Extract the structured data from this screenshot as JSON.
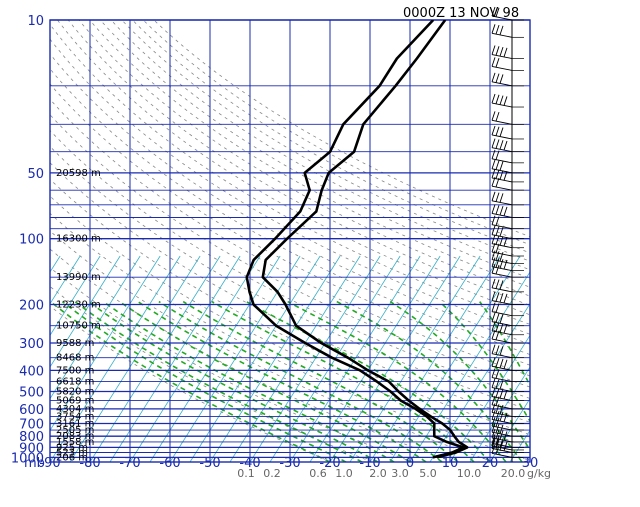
{
  "chart_data": {
    "type": "skew-t",
    "title": "0000Z 13 NOV 98",
    "pressure_unit_label": "mb",
    "pressure_ticks": [
      10,
      50,
      100,
      200,
      300,
      400,
      500,
      600,
      700,
      800,
      900,
      1000
    ],
    "temperature_ticks": [
      -90,
      -80,
      -70,
      -60,
      -50,
      -40,
      -30,
      -20,
      -10,
      0,
      10,
      20,
      30
    ],
    "temperature_tick_labels": [
      "-90",
      "-80",
      "-70",
      "-60",
      "-50",
      "-40",
      "-30",
      "-20",
      "-10",
      "0",
      "10",
      "20",
      "30"
    ],
    "height_labels": [
      {
        "p": 50,
        "label": "20598 m"
      },
      {
        "p": 100,
        "label": "16300 m"
      },
      {
        "p": 150,
        "label": "13990 m"
      },
      {
        "p": 200,
        "label": "12230 m"
      },
      {
        "p": 250,
        "label": "10750 m"
      },
      {
        "p": 300,
        "label": "9588 m"
      },
      {
        "p": 350,
        "label": "8468 m"
      },
      {
        "p": 400,
        "label": "7500 m"
      },
      {
        "p": 450,
        "label": "6618 m"
      },
      {
        "p": 500,
        "label": "5820 m"
      },
      {
        "p": 550,
        "label": "5069 m"
      },
      {
        "p": 600,
        "label": "4304 m"
      },
      {
        "p": 650,
        "label": "3754 m"
      },
      {
        "p": 700,
        "label": "3161 m"
      },
      {
        "p": 750,
        "label": "2505 m"
      },
      {
        "p": 800,
        "label": "2083 m"
      },
      {
        "p": 850,
        "label": "1558 m"
      },
      {
        "p": 900,
        "label": "925 m"
      },
      {
        "p": 950,
        "label": "523 m"
      },
      {
        "p": 1000,
        "label": "206 m"
      }
    ],
    "mixing_ratio_labels": [
      "0.1",
      "0.2",
      "0.6",
      "1.0",
      "2.0",
      "3.0",
      "5.0",
      "10.0",
      "20.0"
    ],
    "mixing_ratio_unit": "g/kg",
    "series": [
      {
        "key": "temperature",
        "points": [
          [
            1000,
            6
          ],
          [
            950,
            10
          ],
          [
            925,
            11
          ],
          [
            900,
            12
          ],
          [
            850,
            9
          ],
          [
            800,
            7
          ],
          [
            750,
            5
          ],
          [
            700,
            2
          ],
          [
            650,
            -2
          ],
          [
            600,
            -6
          ],
          [
            550,
            -10
          ],
          [
            500,
            -14
          ],
          [
            450,
            -18
          ],
          [
            400,
            -25
          ],
          [
            350,
            -32
          ],
          [
            300,
            -41
          ],
          [
            250,
            -50
          ],
          [
            200,
            -56
          ],
          [
            175,
            -60
          ],
          [
            150,
            -66
          ],
          [
            125,
            -68
          ],
          [
            100,
            -66
          ],
          [
            75,
            -63
          ],
          [
            60,
            -65
          ],
          [
            50,
            -66
          ],
          [
            40,
            -63
          ],
          [
            30,
            -65
          ],
          [
            20,
            -63
          ],
          [
            15,
            -62
          ],
          [
            10,
            -61
          ]
        ]
      },
      {
        "key": "dewpoint",
        "points": [
          [
            1000,
            5
          ],
          [
            950,
            9
          ],
          [
            925,
            10
          ],
          [
            900,
            11
          ],
          [
            850,
            6
          ],
          [
            800,
            2
          ],
          [
            750,
            1
          ],
          [
            700,
            0
          ],
          [
            650,
            -3
          ],
          [
            600,
            -7
          ],
          [
            550,
            -12
          ],
          [
            500,
            -16
          ],
          [
            450,
            -21
          ],
          [
            400,
            -27
          ],
          [
            350,
            -36
          ],
          [
            300,
            -45
          ],
          [
            250,
            -55
          ],
          [
            200,
            -64
          ],
          [
            175,
            -67
          ],
          [
            150,
            -70
          ],
          [
            125,
            -71
          ],
          [
            100,
            -69
          ],
          [
            75,
            -67
          ],
          [
            60,
            -68
          ],
          [
            50,
            -72
          ],
          [
            40,
            -69
          ],
          [
            30,
            -70
          ],
          [
            20,
            -67
          ],
          [
            15,
            -67
          ],
          [
            10,
            -64
          ]
        ]
      }
    ],
    "wind_barbs_at_pressures": [
      10,
      12,
      15,
      17,
      20,
      25,
      30,
      35,
      40,
      45,
      50,
      55,
      60,
      70,
      80,
      90,
      100,
      110,
      120,
      130,
      140,
      150,
      175,
      200,
      225,
      250,
      275,
      300,
      350,
      400,
      450,
      500,
      550,
      600,
      650,
      700,
      750,
      800,
      850,
      900,
      925,
      950,
      1000
    ],
    "colors": {
      "grid": "#1a2bb0",
      "isotherm_skewed": "#3ab0c8",
      "dry_adiabat": "#888888",
      "moist_adiabat": "#22aa22",
      "sounding": "#000000",
      "background": "#ffffff"
    }
  }
}
